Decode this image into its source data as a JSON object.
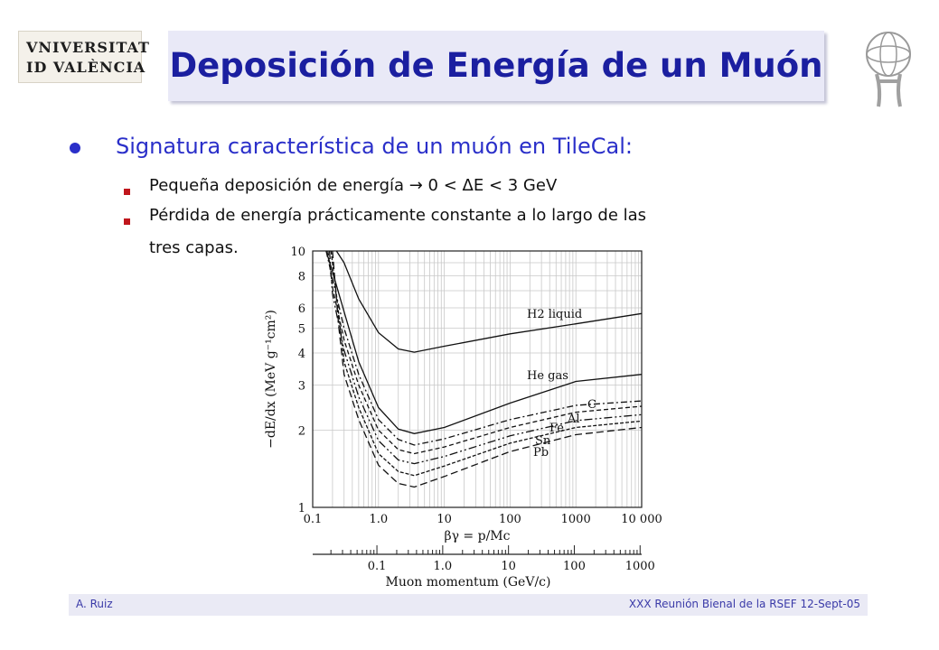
{
  "header": {
    "logo_line1": "VNIVERSITAT",
    "logo_line2": "ID VALÈNCIA",
    "title": "Deposición de Energía de un Muón",
    "right_logo_icon": "atlas-logo-icon"
  },
  "body": {
    "bullet": "Signatura característica de un muón en TileCal:",
    "sub1": "Pequeña deposición de energía → 0 < ΔE < 3 GeV",
    "sub2_line1": "Pérdida de energía prácticamente constante a lo largo de las",
    "sub2_line2": "tres capas."
  },
  "footer": {
    "author": "A. Ruiz",
    "event": "XXX Reunión Bienal de la RSEF 12-Sept-05"
  },
  "chart_data": {
    "type": "line",
    "x_scale": "log",
    "y_scale": "log",
    "xlabel": "βγ = p/Mc",
    "ylabel": "−dE/dx (MeV g⁻¹cm²)",
    "xlim": [
      0.1,
      10000
    ],
    "ylim": [
      1,
      10
    ],
    "x_ticks": [
      "0.1",
      "1.0",
      "10",
      "100",
      "1000",
      "10 000"
    ],
    "y_ticks": [
      "1",
      "2",
      "3",
      "4",
      "5",
      "6",
      "8",
      "10"
    ],
    "grid": true,
    "secondary_axis": {
      "label": "Muon momentum (GeV/c)",
      "ticks": [
        "0.1",
        "1.0",
        "10",
        "100",
        "1000"
      ]
    },
    "series": [
      {
        "name": "H2 liquid",
        "x": [
          0.23,
          0.3,
          0.5,
          1,
          2,
          3.5,
          10,
          100,
          1000,
          10000
        ],
        "y": [
          10,
          9.0,
          6.5,
          4.8,
          4.15,
          4.03,
          4.25,
          4.75,
          5.2,
          5.7
        ]
      },
      {
        "name": "He gas",
        "x": [
          0.16,
          0.2,
          0.3,
          0.5,
          1,
          2,
          3.5,
          10,
          100,
          1000,
          10000
        ],
        "y": [
          10,
          8.3,
          5.8,
          3.7,
          2.45,
          2.02,
          1.94,
          2.05,
          2.55,
          3.1,
          3.3
        ]
      },
      {
        "name": "C",
        "x": [
          0.16,
          0.2,
          0.3,
          0.5,
          1,
          2,
          3.5,
          10,
          100,
          1000,
          10000
        ],
        "y": [
          10,
          7.8,
          5.0,
          3.3,
          2.2,
          1.84,
          1.75,
          1.85,
          2.2,
          2.5,
          2.6
        ]
      },
      {
        "name": "Al",
        "x": [
          0.17,
          0.2,
          0.3,
          0.5,
          1,
          2,
          3.5,
          10,
          100,
          1000,
          10000
        ],
        "y": [
          10,
          7.2,
          4.5,
          3.0,
          2.0,
          1.68,
          1.62,
          1.72,
          2.05,
          2.35,
          2.48
        ]
      },
      {
        "name": "Fe",
        "x": [
          0.18,
          0.2,
          0.3,
          0.5,
          1,
          2,
          3.5,
          10,
          100,
          1000,
          10000
        ],
        "y": [
          10,
          6.8,
          4.1,
          2.7,
          1.82,
          1.53,
          1.48,
          1.58,
          1.9,
          2.18,
          2.3
        ]
      },
      {
        "name": "Sn",
        "x": [
          0.19,
          0.25,
          0.3,
          0.5,
          1,
          2,
          3.5,
          10,
          100,
          1000,
          10000
        ],
        "y": [
          10,
          5.6,
          3.7,
          2.45,
          1.62,
          1.38,
          1.33,
          1.45,
          1.78,
          2.05,
          2.17
        ]
      },
      {
        "name": "Pb",
        "x": [
          0.2,
          0.25,
          0.3,
          0.5,
          1,
          2,
          3.5,
          10,
          100,
          1000,
          10000
        ],
        "y": [
          10,
          5.0,
          3.3,
          2.2,
          1.46,
          1.24,
          1.2,
          1.32,
          1.65,
          1.92,
          2.05
        ]
      }
    ],
    "label_positions_note": "",
    "series_labels": [
      "H2 liquid",
      "He gas",
      "C",
      "Al",
      "Fe",
      "Sn",
      "Pb"
    ]
  }
}
